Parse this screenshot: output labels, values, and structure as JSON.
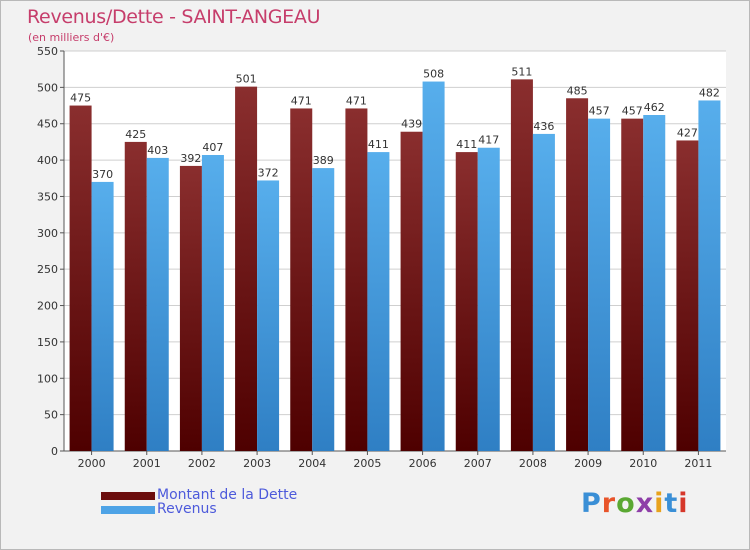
{
  "header": {
    "title": "Revenus/Dette - SAINT-ANGEAU",
    "subtitle": "(en milliers d'€)"
  },
  "legend": {
    "items": [
      {
        "label": "Montant de la Dette",
        "color": "#6b0d0d"
      },
      {
        "label": "Revenus",
        "color": "#4ea3e6"
      }
    ]
  },
  "logo": {
    "text": "Proxiti",
    "colors": [
      "#3a8fd6",
      "#e8542a",
      "#5aa832",
      "#8e3ea8",
      "#e8a21c",
      "#3a8fd6",
      "#d6372a"
    ]
  },
  "chart_data": {
    "type": "bar",
    "categories": [
      "2000",
      "2001",
      "2002",
      "2003",
      "2004",
      "2005",
      "2006",
      "2007",
      "2008",
      "2009",
      "2010",
      "2011"
    ],
    "series": [
      {
        "name": "Montant de la Dette",
        "values": [
          475,
          425,
          392,
          501,
          471,
          471,
          439,
          411,
          511,
          485,
          457,
          427
        ]
      },
      {
        "name": "Revenus",
        "values": [
          370,
          403,
          407,
          372,
          389,
          411,
          508,
          417,
          436,
          457,
          462,
          482
        ]
      }
    ],
    "title": "Revenus/Dette - SAINT-ANGEAU",
    "ylim": [
      0,
      550
    ],
    "yticks": [
      0,
      50,
      100,
      150,
      200,
      250,
      300,
      350,
      400,
      450,
      500,
      550
    ],
    "grid": true,
    "legend_position": "bottom-left"
  }
}
